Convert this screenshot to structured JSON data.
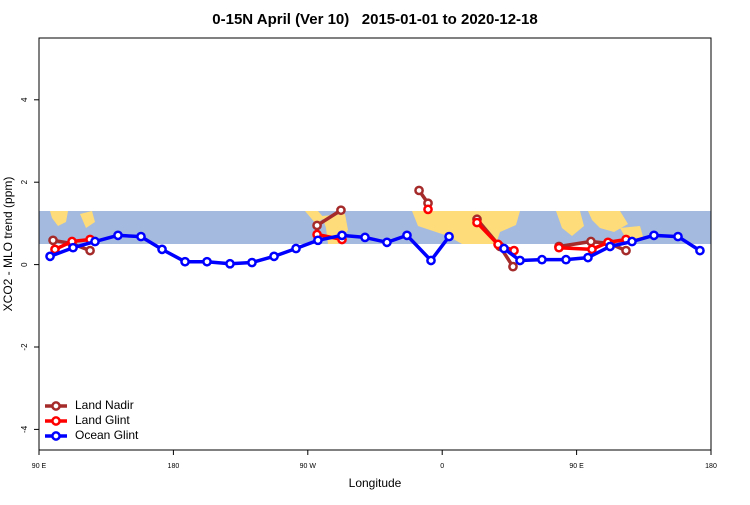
{
  "chart_data": {
    "type": "line",
    "title": "0-15N April (Ver 10)   2015-01-01 to 2020-12-18",
    "x_label": "Longitude",
    "y_label": "XCO2 - MLO trend (ppm)",
    "xlim": [
      90,
      540
    ],
    "xticks": [
      {
        "value": 90,
        "label": "90 E"
      },
      {
        "value": 180,
        "label": "180"
      },
      {
        "value": 270,
        "label": "90 W"
      },
      {
        "value": 360,
        "label": "0"
      },
      {
        "value": 450,
        "label": "90 E"
      },
      {
        "value": 540,
        "label": "180"
      }
    ],
    "ylim": [
      -4.5,
      5.5
    ],
    "yticks": [
      -4,
      -2,
      0,
      2,
      4
    ],
    "legend": "bottom-left",
    "series": [
      {
        "name": "Land Nadir",
        "color": "#a52a2a",
        "x": [
          99.4,
          112.1,
          124.2,
          null,
          276.2,
          292.2,
          null,
          344.5,
          350.5,
          null,
          383.3,
          398.7,
          407.4,
          null,
          438.2,
          459.6,
          472.4,
          483.1
        ],
        "values": [
          0.59,
          0.51,
          0.34,
          null,
          0.95,
          1.32,
          null,
          1.8,
          1.49,
          null,
          1.1,
          0.44,
          -0.05,
          null,
          0.44,
          0.56,
          0.51,
          0.34
        ]
      },
      {
        "name": "Land Glint",
        "color": "#ff0000",
        "x": [
          100.7,
          112.1,
          124.2,
          null,
          276.2,
          292.9,
          null,
          350.5,
          null,
          383.3,
          397.4,
          408.1,
          null,
          438.2,
          460.3,
          471.0,
          483.1
        ],
        "values": [
          0.37,
          0.56,
          0.61,
          null,
          0.73,
          0.61,
          null,
          1.34,
          null,
          1.02,
          0.49,
          0.34,
          null,
          0.41,
          0.37,
          0.54,
          0.61
        ]
      },
      {
        "name": "Ocean Glint",
        "color": "#0000ff",
        "x": [
          97.4,
          112.8,
          127.5,
          142.9,
          158.3,
          172.4,
          187.8,
          202.5,
          217.9,
          232.6,
          247.4,
          262.1,
          276.8,
          292.9,
          308.3,
          323.0,
          336.4,
          352.5,
          364.6,
          null,
          401.4,
          412.1,
          426.8,
          442.9,
          457.6,
          472.4,
          487.1,
          501.8,
          517.9,
          532.6
        ],
        "values": [
          0.2,
          0.41,
          0.56,
          0.71,
          0.68,
          0.37,
          0.07,
          0.07,
          0.02,
          0.05,
          0.2,
          0.39,
          0.59,
          0.71,
          0.66,
          0.54,
          0.71,
          0.1,
          0.68,
          null,
          0.39,
          0.1,
          0.12,
          0.12,
          0.17,
          0.44,
          0.56,
          0.71,
          0.68,
          0.34
        ]
      }
    ]
  }
}
